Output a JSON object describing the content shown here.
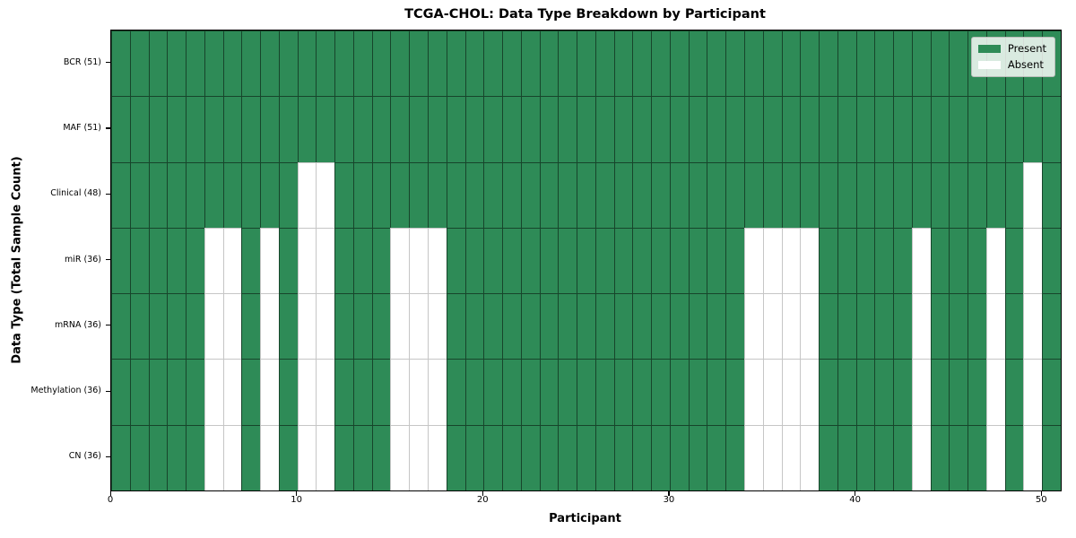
{
  "chart_data": {
    "type": "heatmap",
    "title": "TCGA-CHOL: Data Type Breakdown by Participant",
    "xlabel": "Participant",
    "ylabel": "Data Type (Total Sample Count)",
    "n_participants": 51,
    "x_axis_range": [
      0,
      51
    ],
    "x_ticks": [
      0,
      10,
      20,
      30,
      40,
      50
    ],
    "grid": true,
    "legend": {
      "position": "upper right",
      "present_label": "Present",
      "absent_label": "Absent"
    },
    "colors": {
      "present": "#2E8B57",
      "absent": "#FFFFFF",
      "grid_on_present": "rgba(0,0,0,0.5)",
      "grid_on_absent": "#C6C6C6"
    },
    "rows": [
      {
        "label": "BCR (51)",
        "name": "BCR",
        "total_samples": 51,
        "absent_participants": []
      },
      {
        "label": "MAF (51)",
        "name": "MAF",
        "total_samples": 51,
        "absent_participants": []
      },
      {
        "label": "Clinical (48)",
        "name": "Clinical",
        "total_samples": 48,
        "absent_participants": [
          10,
          11,
          49
        ]
      },
      {
        "label": "miR (36)",
        "name": "miR",
        "total_samples": 36,
        "absent_participants": [
          5,
          6,
          8,
          10,
          11,
          15,
          16,
          17,
          34,
          35,
          36,
          37,
          43,
          47,
          49
        ]
      },
      {
        "label": "mRNA (36)",
        "name": "mRNA",
        "total_samples": 36,
        "absent_participants": [
          5,
          6,
          8,
          10,
          11,
          15,
          16,
          17,
          34,
          35,
          36,
          37,
          43,
          47,
          49
        ]
      },
      {
        "label": "Methylation (36)",
        "name": "Methylation",
        "total_samples": 36,
        "absent_participants": [
          5,
          6,
          8,
          10,
          11,
          15,
          16,
          17,
          34,
          35,
          36,
          37,
          43,
          47,
          49
        ]
      },
      {
        "label": "CN (36)",
        "name": "CN",
        "total_samples": 36,
        "absent_participants": [
          5,
          6,
          8,
          10,
          11,
          15,
          16,
          17,
          34,
          35,
          36,
          37,
          43,
          47,
          49
        ]
      }
    ]
  }
}
